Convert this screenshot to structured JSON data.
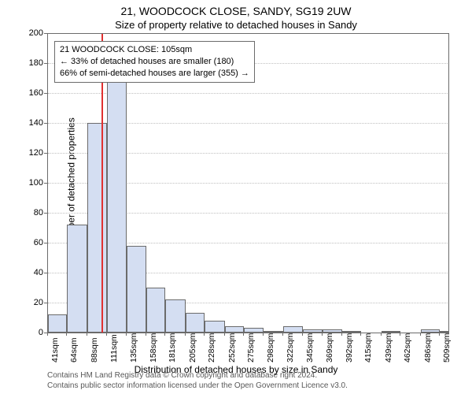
{
  "titles": {
    "main": "21, WOODCOCK CLOSE, SANDY, SG19 2UW",
    "sub": "Size of property relative to detached houses in Sandy",
    "ylabel": "Number of detached properties",
    "xlabel": "Distribution of detached houses by size in Sandy"
  },
  "chart": {
    "type": "histogram",
    "background_color": "#ffffff",
    "bar_fill": "#d4def2",
    "bar_border": "#6b6b6b",
    "grid_color": "#bfbfbf",
    "marker_color": "#e03030",
    "marker_x_value": 105,
    "x": {
      "min": 41,
      "max": 520,
      "tick_values": [
        41,
        64,
        88,
        111,
        135,
        158,
        181,
        205,
        228,
        252,
        275,
        298,
        322,
        345,
        369,
        392,
        415,
        439,
        462,
        486,
        509
      ],
      "tick_labels": [
        "41sqm",
        "64sqm",
        "88sqm",
        "111sqm",
        "135sqm",
        "158sqm",
        "181sqm",
        "205sqm",
        "228sqm",
        "252sqm",
        "275sqm",
        "298sqm",
        "322sqm",
        "345sqm",
        "369sqm",
        "392sqm",
        "415sqm",
        "439sqm",
        "462sqm",
        "486sqm",
        "509sqm"
      ]
    },
    "y": {
      "min": 0,
      "max": 200,
      "ticks": [
        0,
        20,
        40,
        60,
        80,
        100,
        120,
        140,
        160,
        180,
        200
      ]
    },
    "bins": [
      {
        "start": 41,
        "end": 64,
        "count": 12
      },
      {
        "start": 64,
        "end": 88,
        "count": 72
      },
      {
        "start": 88,
        "end": 111,
        "count": 140
      },
      {
        "start": 111,
        "end": 135,
        "count": 168
      },
      {
        "start": 135,
        "end": 158,
        "count": 58
      },
      {
        "start": 158,
        "end": 181,
        "count": 30
      },
      {
        "start": 181,
        "end": 205,
        "count": 22
      },
      {
        "start": 205,
        "end": 228,
        "count": 13
      },
      {
        "start": 228,
        "end": 252,
        "count": 8
      },
      {
        "start": 252,
        "end": 275,
        "count": 4
      },
      {
        "start": 275,
        "end": 298,
        "count": 3
      },
      {
        "start": 298,
        "end": 322,
        "count": 1
      },
      {
        "start": 322,
        "end": 345,
        "count": 4
      },
      {
        "start": 345,
        "end": 369,
        "count": 2
      },
      {
        "start": 369,
        "end": 392,
        "count": 2
      },
      {
        "start": 392,
        "end": 415,
        "count": 1
      },
      {
        "start": 415,
        "end": 439,
        "count": 0
      },
      {
        "start": 439,
        "end": 462,
        "count": 1
      },
      {
        "start": 462,
        "end": 486,
        "count": 0
      },
      {
        "start": 486,
        "end": 509,
        "count": 2
      },
      {
        "start": 509,
        "end": 520,
        "count": 1
      }
    ]
  },
  "annotation": {
    "line1": "21 WOODCOCK CLOSE: 105sqm",
    "line2": "← 33% of detached houses are smaller (180)",
    "line3": "66% of semi-detached houses are larger (355) →"
  },
  "attribution": {
    "line1": "Contains HM Land Registry data © Crown copyright and database right 2024.",
    "line2": "Contains public sector information licensed under the Open Government Licence v3.0."
  }
}
